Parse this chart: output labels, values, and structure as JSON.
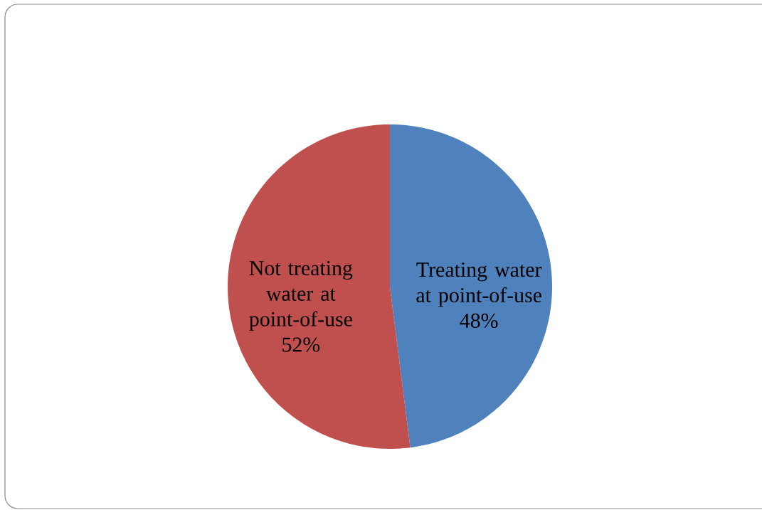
{
  "chart_data": {
    "type": "pie",
    "categories": [
      "Treating water at point-of-use",
      "Not treating water at point-of-use"
    ],
    "values": [
      48,
      52
    ],
    "colors": [
      "#4f81bd",
      "#c0504d"
    ],
    "value_labels": [
      "48%",
      "52%"
    ]
  }
}
